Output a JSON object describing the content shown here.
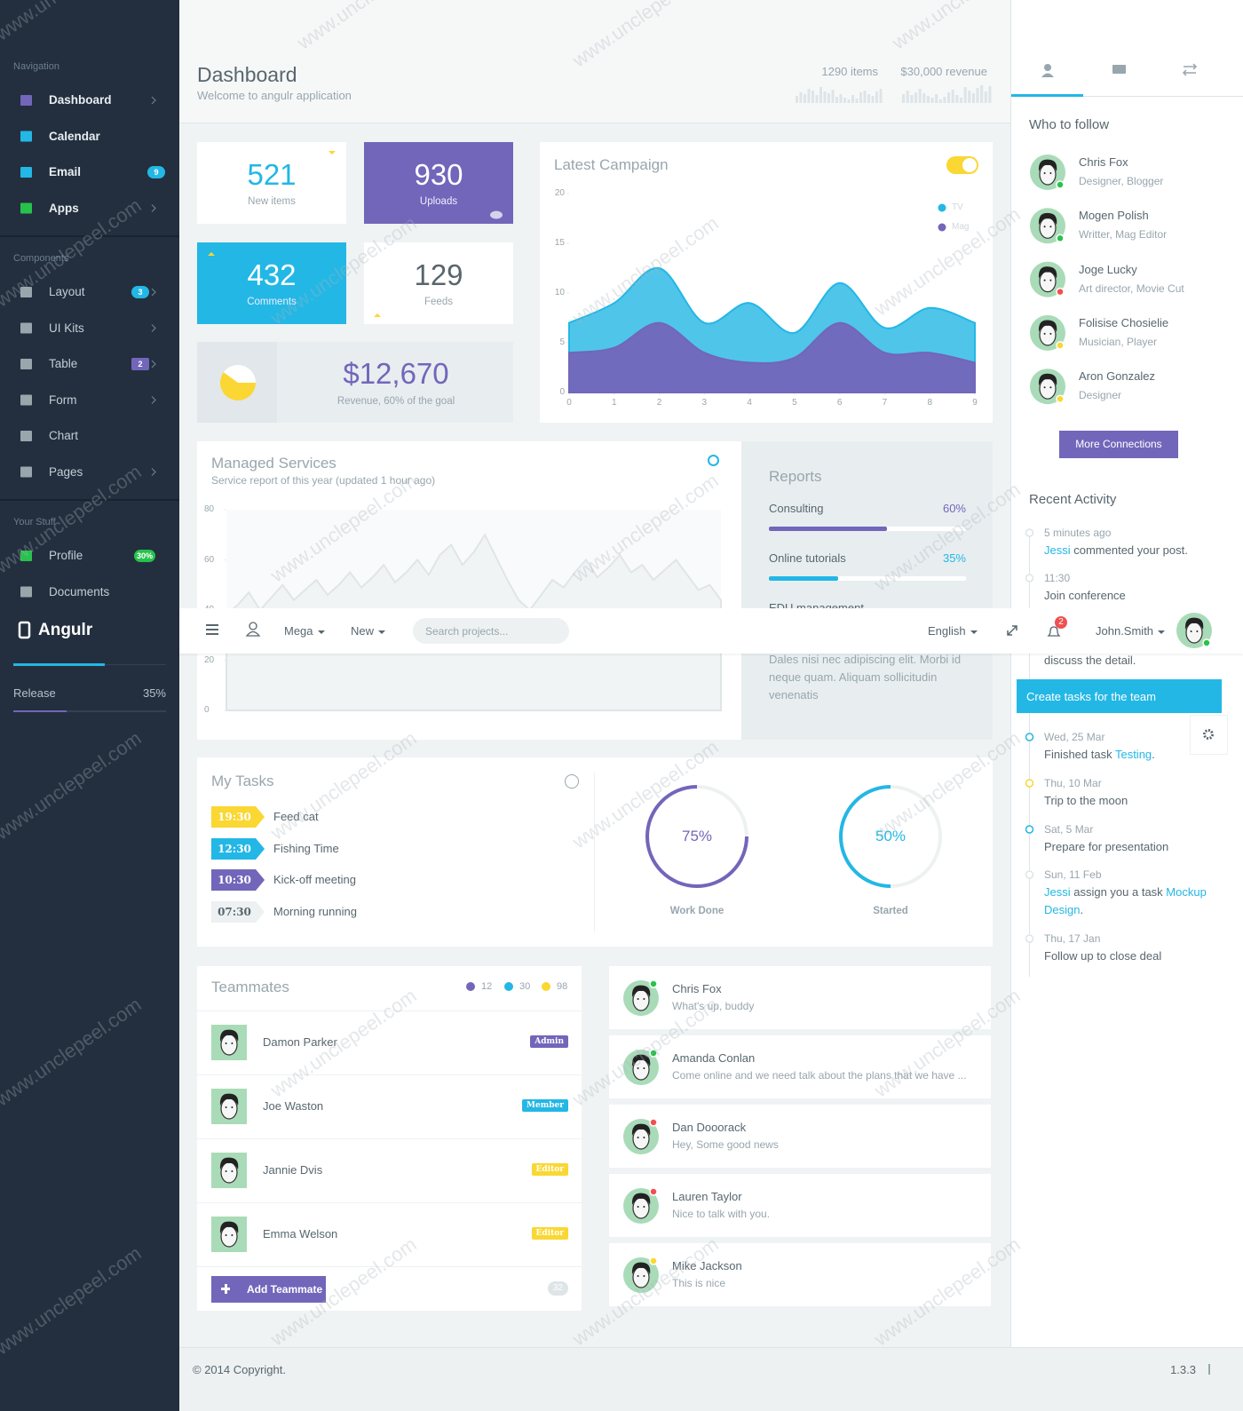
{
  "watermark": "www.unclepeel.com",
  "sidebar": {
    "groups": [
      {
        "title": "Navigation",
        "items": [
          {
            "label": "Dashboard",
            "icon_color": "#7266ba",
            "chevron": true
          },
          {
            "label": "Calendar",
            "icon_color": "#23b7e5"
          },
          {
            "label": "Email",
            "icon_color": "#23b7e5",
            "badge": 9,
            "badge_color": "#23b7e5"
          },
          {
            "label": "Apps",
            "icon_color": "#27c24c",
            "chevron": true
          }
        ]
      },
      {
        "title": "Components",
        "items": [
          {
            "label": "Layout",
            "icon_color": "#98a6ad",
            "badge": 3,
            "badge_color": "#23b7e5",
            "chevron": true
          },
          {
            "label": "UI Kits",
            "icon_color": "#98a6ad",
            "chevron": true
          },
          {
            "label": "Table",
            "icon_color": "#98a6ad",
            "badge": 2,
            "badge_color": "#7266ba",
            "chevron": true
          },
          {
            "label": "Form",
            "icon_color": "#98a6ad",
            "chevron": true
          },
          {
            "label": "Chart",
            "icon_color": "#98a6ad"
          },
          {
            "label": "Pages",
            "icon_color": "#98a6ad",
            "chevron": true
          }
        ]
      },
      {
        "title": "Your Stuff",
        "items": [
          {
            "label": "Profile",
            "icon_color": "#27c24c",
            "badge": "30%",
            "badge_color": "#27c24c"
          },
          {
            "label": "Documents",
            "icon_color": "#98a6ad"
          }
        ]
      }
    ],
    "brand": "Angulr",
    "release": {
      "label": "Release",
      "value": 35,
      "value_label": "35%"
    }
  },
  "header": {
    "title": "Dashboard",
    "subtitle": "Welcome to angulr application",
    "stats": [
      {
        "label": "1290 items",
        "bars": [
          8,
          12,
          10,
          16,
          14,
          9,
          18,
          13,
          11,
          15,
          7,
          10,
          6,
          4,
          9,
          5,
          12,
          14,
          10,
          8,
          13,
          16
        ]
      },
      {
        "label": "$30,000 revenue",
        "bars": [
          10,
          14,
          9,
          12,
          16,
          11,
          8,
          6,
          10,
          4,
          7,
          12,
          15,
          9,
          6,
          18,
          14,
          11,
          17,
          20,
          13,
          19
        ]
      }
    ]
  },
  "tiles": [
    {
      "value": 521,
      "label": "New items",
      "color": "#ffffff"
    },
    {
      "value": 930,
      "label": "Uploads",
      "color": "#7266ba"
    },
    {
      "value": 432,
      "label": "Comments",
      "color": "#23b7e5"
    },
    {
      "value": 129,
      "label": "Feeds",
      "color": "#ffffff"
    }
  ],
  "revenue": {
    "value": "$12,670",
    "label": "Revenue, 60% of the goal",
    "pie": 60,
    "color": "#fad733"
  },
  "chart_data": [
    {
      "type": "area",
      "title": "Latest Campaign",
      "x": [
        0,
        1,
        2,
        3,
        4,
        5,
        6,
        7,
        8,
        9
      ],
      "xlim": [
        0,
        9
      ],
      "xticks": [
        0,
        1,
        2,
        3,
        4,
        5,
        6,
        7,
        8,
        9
      ],
      "ylim": [
        0,
        20
      ],
      "yticks": [
        0,
        5,
        10,
        15,
        20
      ],
      "series": [
        {
          "name": "TV",
          "color": "#23b7e5",
          "values": [
            7,
            9,
            12.5,
            7,
            9,
            6,
            11,
            6.5,
            8.5,
            7
          ]
        },
        {
          "name": "Mag",
          "color": "#7266ba",
          "values": [
            4,
            4.5,
            7,
            4,
            3,
            3.5,
            7,
            4,
            4,
            3
          ]
        }
      ]
    },
    {
      "type": "line",
      "title": "Managed Services",
      "subtitle": "Service report of this year (updated 1 hour ago)",
      "ylim": [
        0,
        80
      ],
      "yticks": [
        0,
        20,
        40,
        60,
        80
      ],
      "series": [
        {
          "color": "#dfe5e8",
          "values": [
            38,
            42,
            47,
            40,
            45,
            50,
            44,
            48,
            52,
            46,
            50,
            55,
            49,
            53,
            58,
            51,
            55,
            60,
            54,
            62,
            66,
            58,
            63,
            70,
            61,
            52,
            44,
            40,
            46,
            52,
            49,
            55,
            60,
            53,
            57,
            62,
            55,
            58,
            52,
            56,
            60,
            54,
            48,
            50,
            44
          ]
        }
      ]
    }
  ],
  "reports": {
    "title": "Reports",
    "items": [
      {
        "label": "Consulting",
        "value": 60,
        "value_label": "60%",
        "color": "#7266ba"
      },
      {
        "label": "Online tutorials",
        "value": 35,
        "value_label": "35%",
        "color": "#23b7e5"
      },
      {
        "label": "EDU management"
      }
    ],
    "text": "Dales nisi nec adipiscing elit. Morbi id neque quam. Aliquam sollicitudin venenatis"
  },
  "tasks": {
    "title": "My Tasks",
    "items": [
      {
        "time": "19:30",
        "label": "Feed cat",
        "color": "#fad733"
      },
      {
        "time": "12:30",
        "label": "Fishing Time",
        "color": "#23b7e5"
      },
      {
        "time": "10:30",
        "label": "Kick-off meeting",
        "color": "#7266ba"
      },
      {
        "time": "07:30",
        "label": "Morning running",
        "color": "#edf1f2"
      }
    ],
    "gauges": [
      {
        "value": 75,
        "value_label": "75%",
        "label": "Work Done",
        "color": "#7266ba"
      },
      {
        "value": 50,
        "value_label": "50%",
        "label": "Started",
        "color": "#23b7e5"
      }
    ]
  },
  "teammates": {
    "title": "Teammates",
    "legend": [
      {
        "value": 12,
        "color": "#7266ba"
      },
      {
        "value": 30,
        "color": "#23b7e5"
      },
      {
        "value": 98,
        "color": "#fad733"
      }
    ],
    "members": [
      {
        "name": "Damon Parker",
        "role": "Admin",
        "color": "#7266ba"
      },
      {
        "name": "Joe Waston",
        "role": "Member",
        "color": "#23b7e5"
      },
      {
        "name": "Jannie Dvis",
        "role": "Editor",
        "color": "#fad733"
      },
      {
        "name": "Emma Welson",
        "role": "Editor",
        "color": "#fad733"
      }
    ],
    "button": "Add Teammate",
    "count": 32
  },
  "messages": [
    {
      "name": "Chris Fox",
      "text": "What's up, buddy",
      "status": "#27c24c"
    },
    {
      "name": "Amanda Conlan",
      "text": "Come online and we need talk about the plans that we have ...",
      "status": "#27c24c"
    },
    {
      "name": "Dan Dooorack",
      "text": "Hey, Some good news",
      "status": "#f05050"
    },
    {
      "name": "Lauren Taylor",
      "text": "Nice to talk with you.",
      "status": "#f05050"
    },
    {
      "name": "Mike Jackson",
      "text": "This is nice",
      "status": "#fad733"
    }
  ],
  "topbar": {
    "menus": [
      "Mega",
      "New"
    ],
    "search": "Search projects...",
    "language": "English",
    "notifications": 2,
    "user": "John.Smith"
  },
  "aside": {
    "follow_title": "Who to follow",
    "follow": [
      {
        "name": "Chris Fox",
        "role": "Designer, Blogger",
        "status": "#27c24c"
      },
      {
        "name": "Mogen Polish",
        "role": "Writter, Mag Editor",
        "status": "#27c24c"
      },
      {
        "name": "Joge Lucky",
        "role": "Art director, Movie Cut",
        "status": "#f05050"
      },
      {
        "name": "Folisise Chosielie",
        "role": "Musician, Player",
        "status": "#fad733"
      },
      {
        "name": "Aron Gonzalez",
        "role": "Designer",
        "status": "#fad733"
      }
    ],
    "button": "More Connections",
    "activity_title": "Recent Activity",
    "activity": [
      {
        "time": "5 minutes ago",
        "parts": [
          {
            "text": "Jessi",
            "link": true
          },
          {
            "text": " commented your post."
          }
        ],
        "dot": "#dee5e7"
      },
      {
        "time": "11:30",
        "parts": [
          {
            "text": "Join conference"
          }
        ],
        "dot": "#dee5e7"
      },
      {
        "parts": [
          {
            "text": "discuss the detail."
          }
        ],
        "dot": "#dee5e7"
      }
    ],
    "task_bar": "Create tasks for the team",
    "activity2": [
      {
        "time": "Wed, 25 Mar",
        "parts": [
          {
            "text": "Finished task "
          },
          {
            "text": "Testing",
            "link": true
          },
          {
            "text": "."
          }
        ],
        "dot": "#23b7e5"
      },
      {
        "time": "Thu, 10 Mar",
        "parts": [
          {
            "text": "Trip to the moon"
          }
        ],
        "dot": "#fad733"
      },
      {
        "time": "Sat, 5 Mar",
        "parts": [
          {
            "text": "Prepare for presentation"
          }
        ],
        "dot": "#23b7e5"
      },
      {
        "time": "Sun, 11 Feb",
        "parts": [
          {
            "text": "Jessi",
            "link": true
          },
          {
            "text": " assign you a task "
          },
          {
            "text": "Mockup Design",
            "link": true
          },
          {
            "text": "."
          }
        ],
        "dot": "#dee5e7"
      },
      {
        "time": "Thu, 17 Jan",
        "parts": [
          {
            "text": "Follow up to close deal"
          }
        ],
        "dot": "#dee5e7"
      }
    ]
  },
  "footer": {
    "copyright": "© 2014 Copyright.",
    "version": "1.3.3"
  }
}
